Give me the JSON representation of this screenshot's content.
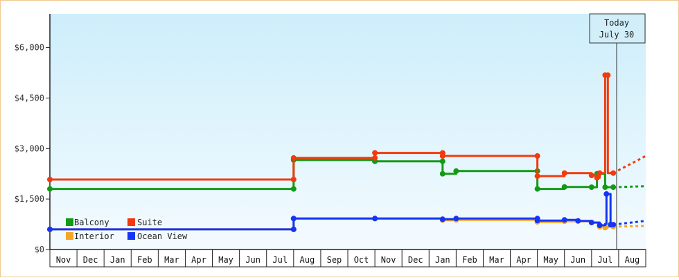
{
  "chart_data": {
    "type": "line",
    "step": true,
    "y_axis": {
      "range": [
        0,
        7000
      ],
      "ticks": [
        {
          "value": 0,
          "label": "$0"
        },
        {
          "value": 1500,
          "label": "$1,500"
        },
        {
          "value": 3000,
          "label": "$3,000"
        },
        {
          "value": 4500,
          "label": "$4,500"
        },
        {
          "value": 6000,
          "label": "$6,000"
        }
      ]
    },
    "x_axis": {
      "range": [
        0,
        22
      ],
      "ticks": [
        "Nov",
        "Dec",
        "Jan",
        "Feb",
        "Mar",
        "Apr",
        "May",
        "Jun",
        "Jul",
        "Aug",
        "Sep",
        "Oct",
        "Nov",
        "Dec",
        "Jan",
        "Feb",
        "Mar",
        "Apr",
        "May",
        "Jun",
        "Jul",
        "Aug"
      ]
    },
    "grid": false,
    "legend": {
      "position": "bottom-left",
      "entries": [
        "Balcony",
        "Suite",
        "Interior",
        "Ocean View"
      ]
    },
    "today": {
      "x": 20.8,
      "label_line1": "Today",
      "label_line2": "July 30"
    },
    "series": [
      {
        "name": "Interior",
        "color": "#f5a623",
        "points": [
          [
            0,
            600
          ],
          [
            9.0,
            600
          ],
          [
            9.0,
            920
          ],
          [
            12.0,
            920
          ],
          [
            14.5,
            920
          ],
          [
            14.5,
            870
          ],
          [
            15.0,
            870
          ],
          [
            15.0,
            880
          ],
          [
            18.0,
            880
          ],
          [
            18.0,
            820
          ],
          [
            19.0,
            820
          ],
          [
            19.0,
            840
          ],
          [
            20.0,
            840
          ],
          [
            20.0,
            800
          ],
          [
            20.3,
            800
          ],
          [
            20.3,
            680
          ],
          [
            20.5,
            680
          ],
          [
            20.5,
            650
          ],
          [
            20.6,
            650
          ],
          [
            20.6,
            680
          ],
          [
            20.8,
            680
          ]
        ],
        "forecast": [
          [
            20.8,
            680
          ],
          [
            22.0,
            700
          ]
        ],
        "markers": [
          [
            0,
            600
          ],
          [
            9.0,
            600
          ],
          [
            9.0,
            920
          ],
          [
            12.0,
            920
          ],
          [
            14.5,
            870
          ],
          [
            15.0,
            880
          ],
          [
            18.0,
            880
          ],
          [
            18.0,
            820
          ],
          [
            19.0,
            840
          ],
          [
            20.0,
            800
          ],
          [
            20.3,
            680
          ],
          [
            20.5,
            650
          ],
          [
            20.8,
            680
          ]
        ]
      },
      {
        "name": "Ocean View",
        "color": "#1535f5",
        "points": [
          [
            0,
            600
          ],
          [
            9.0,
            600
          ],
          [
            9.0,
            920
          ],
          [
            12.0,
            920
          ],
          [
            14.5,
            920
          ],
          [
            14.5,
            900
          ],
          [
            15.0,
            900
          ],
          [
            15.0,
            920
          ],
          [
            18.0,
            920
          ],
          [
            18.0,
            860
          ],
          [
            19.0,
            860
          ],
          [
            19.0,
            880
          ],
          [
            19.5,
            880
          ],
          [
            19.5,
            850
          ],
          [
            20.0,
            850
          ],
          [
            20.0,
            800
          ],
          [
            20.3,
            800
          ],
          [
            20.3,
            720
          ],
          [
            20.5,
            720
          ],
          [
            20.5,
            760
          ],
          [
            20.55,
            760
          ],
          [
            20.55,
            1650
          ],
          [
            20.7,
            1650
          ],
          [
            20.7,
            740
          ],
          [
            20.8,
            740
          ]
        ],
        "forecast": [
          [
            20.8,
            740
          ],
          [
            22.0,
            850
          ]
        ],
        "markers": [
          [
            0,
            600
          ],
          [
            9.0,
            600
          ],
          [
            9.0,
            920
          ],
          [
            12.0,
            920
          ],
          [
            14.5,
            900
          ],
          [
            15.0,
            920
          ],
          [
            18.0,
            920
          ],
          [
            18.0,
            860
          ],
          [
            19.0,
            880
          ],
          [
            19.5,
            850
          ],
          [
            20.0,
            800
          ],
          [
            20.3,
            720
          ],
          [
            20.55,
            1650
          ],
          [
            20.7,
            740
          ],
          [
            20.8,
            740
          ]
        ]
      },
      {
        "name": "Balcony",
        "color": "#129a16",
        "points": [
          [
            0,
            1800
          ],
          [
            9.0,
            1800
          ],
          [
            9.0,
            2660
          ],
          [
            12.0,
            2660
          ],
          [
            12.0,
            2620
          ],
          [
            14.5,
            2620
          ],
          [
            14.5,
            2250
          ],
          [
            15.0,
            2250
          ],
          [
            15.0,
            2330
          ],
          [
            18.0,
            2330
          ],
          [
            18.0,
            1800
          ],
          [
            19.0,
            1800
          ],
          [
            19.0,
            1860
          ],
          [
            20.0,
            1860
          ],
          [
            20.0,
            1850
          ],
          [
            20.2,
            1850
          ],
          [
            20.2,
            2250
          ],
          [
            20.5,
            2250
          ],
          [
            20.5,
            1850
          ],
          [
            20.8,
            1850
          ]
        ],
        "forecast": [
          [
            20.8,
            1850
          ],
          [
            22.0,
            1880
          ]
        ],
        "markers": [
          [
            0,
            1800
          ],
          [
            9.0,
            1800
          ],
          [
            9.0,
            2660
          ],
          [
            12.0,
            2620
          ],
          [
            14.5,
            2620
          ],
          [
            14.5,
            2250
          ],
          [
            15.0,
            2330
          ],
          [
            18.0,
            2330
          ],
          [
            18.0,
            1800
          ],
          [
            19.0,
            1860
          ],
          [
            20.0,
            1850
          ],
          [
            20.2,
            2250
          ],
          [
            20.5,
            1850
          ],
          [
            20.8,
            1850
          ]
        ]
      },
      {
        "name": "Suite",
        "color": "#f23a0c",
        "points": [
          [
            0,
            2080
          ],
          [
            9.0,
            2080
          ],
          [
            9.0,
            2720
          ],
          [
            12.0,
            2720
          ],
          [
            12.0,
            2870
          ],
          [
            14.5,
            2870
          ],
          [
            14.5,
            2780
          ],
          [
            18.0,
            2780
          ],
          [
            18.0,
            2180
          ],
          [
            19.0,
            2180
          ],
          [
            19.0,
            2270
          ],
          [
            20.0,
            2270
          ],
          [
            20.0,
            2200
          ],
          [
            20.2,
            2200
          ],
          [
            20.2,
            2130
          ],
          [
            20.3,
            2130
          ],
          [
            20.3,
            2270
          ],
          [
            20.5,
            2270
          ],
          [
            20.5,
            5180
          ],
          [
            20.6,
            5180
          ],
          [
            20.6,
            2270
          ],
          [
            20.8,
            2270
          ]
        ],
        "forecast": [
          [
            20.8,
            2270
          ],
          [
            22.0,
            2780
          ]
        ],
        "markers": [
          [
            0,
            2080
          ],
          [
            9.0,
            2080
          ],
          [
            9.0,
            2720
          ],
          [
            12.0,
            2720
          ],
          [
            12.0,
            2870
          ],
          [
            14.5,
            2870
          ],
          [
            14.5,
            2780
          ],
          [
            18.0,
            2780
          ],
          [
            18.0,
            2180
          ],
          [
            19.0,
            2270
          ],
          [
            20.0,
            2200
          ],
          [
            20.2,
            2130
          ],
          [
            20.3,
            2270
          ],
          [
            20.5,
            5180
          ],
          [
            20.6,
            5180
          ],
          [
            20.8,
            2270
          ]
        ]
      }
    ]
  }
}
